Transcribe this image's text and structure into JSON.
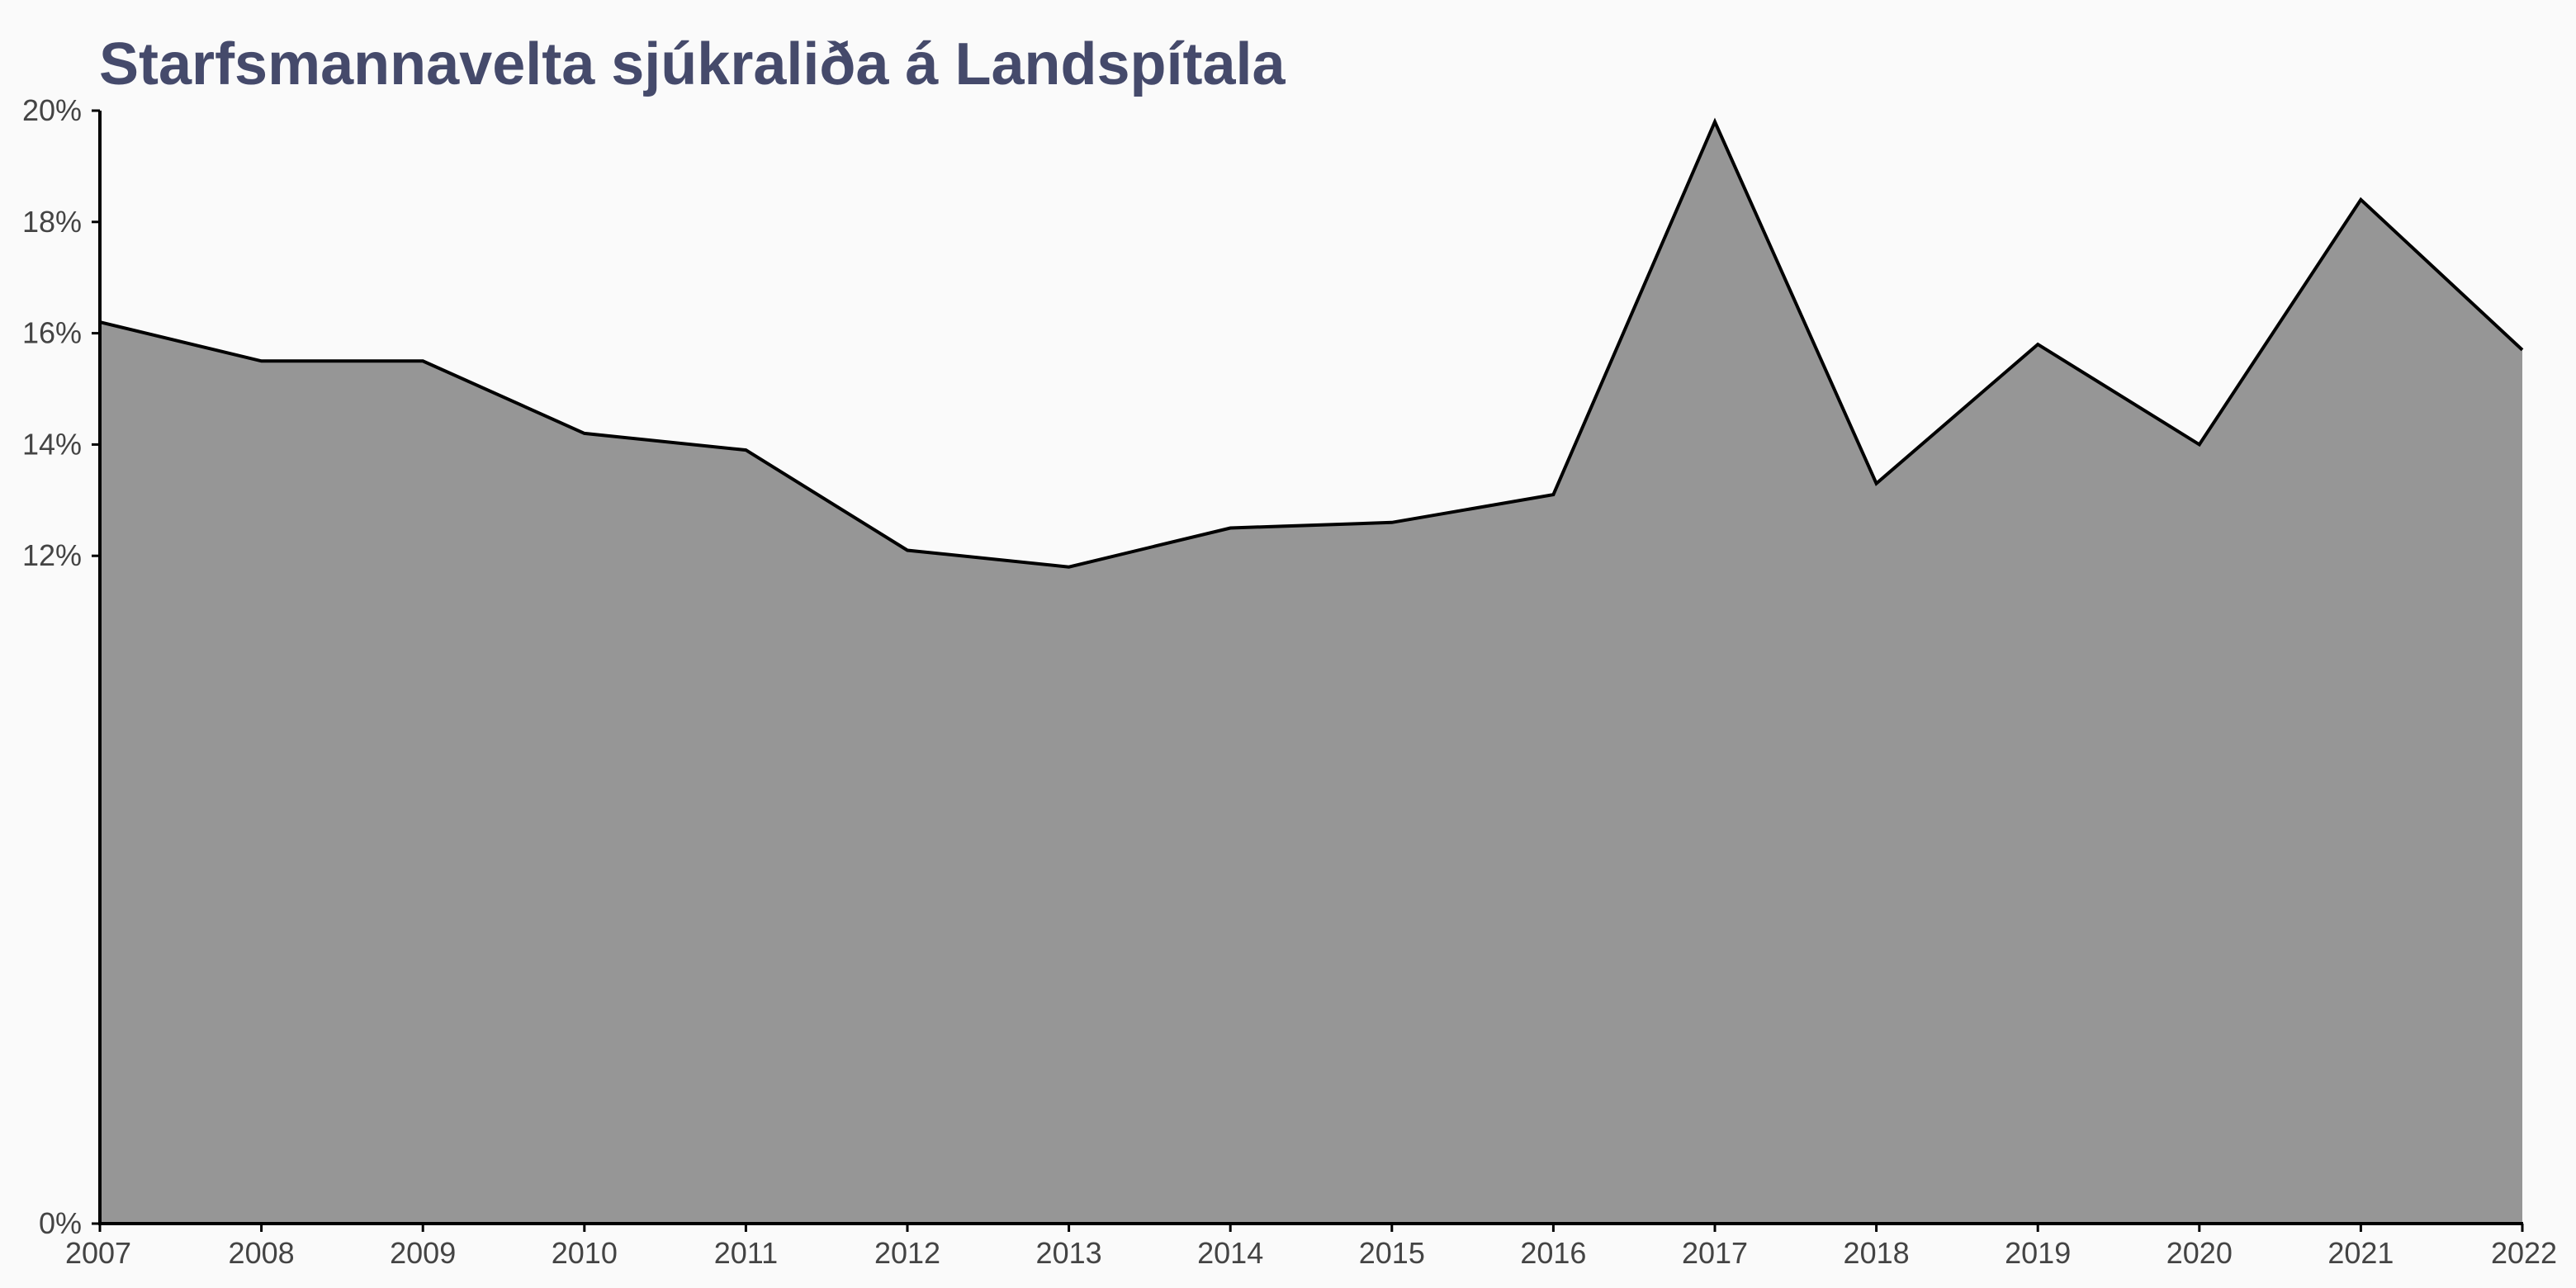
{
  "chart_data": {
    "type": "area",
    "title": "Starfsmannavelta sjúkraliða á Landspítala",
    "xlabel": "",
    "ylabel": "",
    "x": [
      2007,
      2008,
      2009,
      2010,
      2011,
      2012,
      2013,
      2014,
      2015,
      2016,
      2017,
      2018,
      2019,
      2020,
      2021,
      2022
    ],
    "x_tick_labels": [
      "2007",
      "2008",
      "2009",
      "2010",
      "2011",
      "2012",
      "2013",
      "2014",
      "2015",
      "2016",
      "2017",
      "2018",
      "2019",
      "2020",
      "2021",
      "2022"
    ],
    "values": [
      16.2,
      15.5,
      15.5,
      14.2,
      13.9,
      12.1,
      11.8,
      12.5,
      12.6,
      13.1,
      19.8,
      13.3,
      15.8,
      14.0,
      18.4,
      15.7
    ],
    "y_ticks": [
      0,
      12,
      14,
      16,
      18,
      20
    ],
    "y_tick_labels": [
      "0%",
      "12%",
      "14%",
      "16%",
      "18%",
      "20%"
    ],
    "ylim": [
      0,
      20
    ],
    "xlim": [
      2007,
      2022
    ],
    "grid": false,
    "fill_color": "#969696",
    "line_color": "#000000",
    "title_color": "#454a6b"
  }
}
